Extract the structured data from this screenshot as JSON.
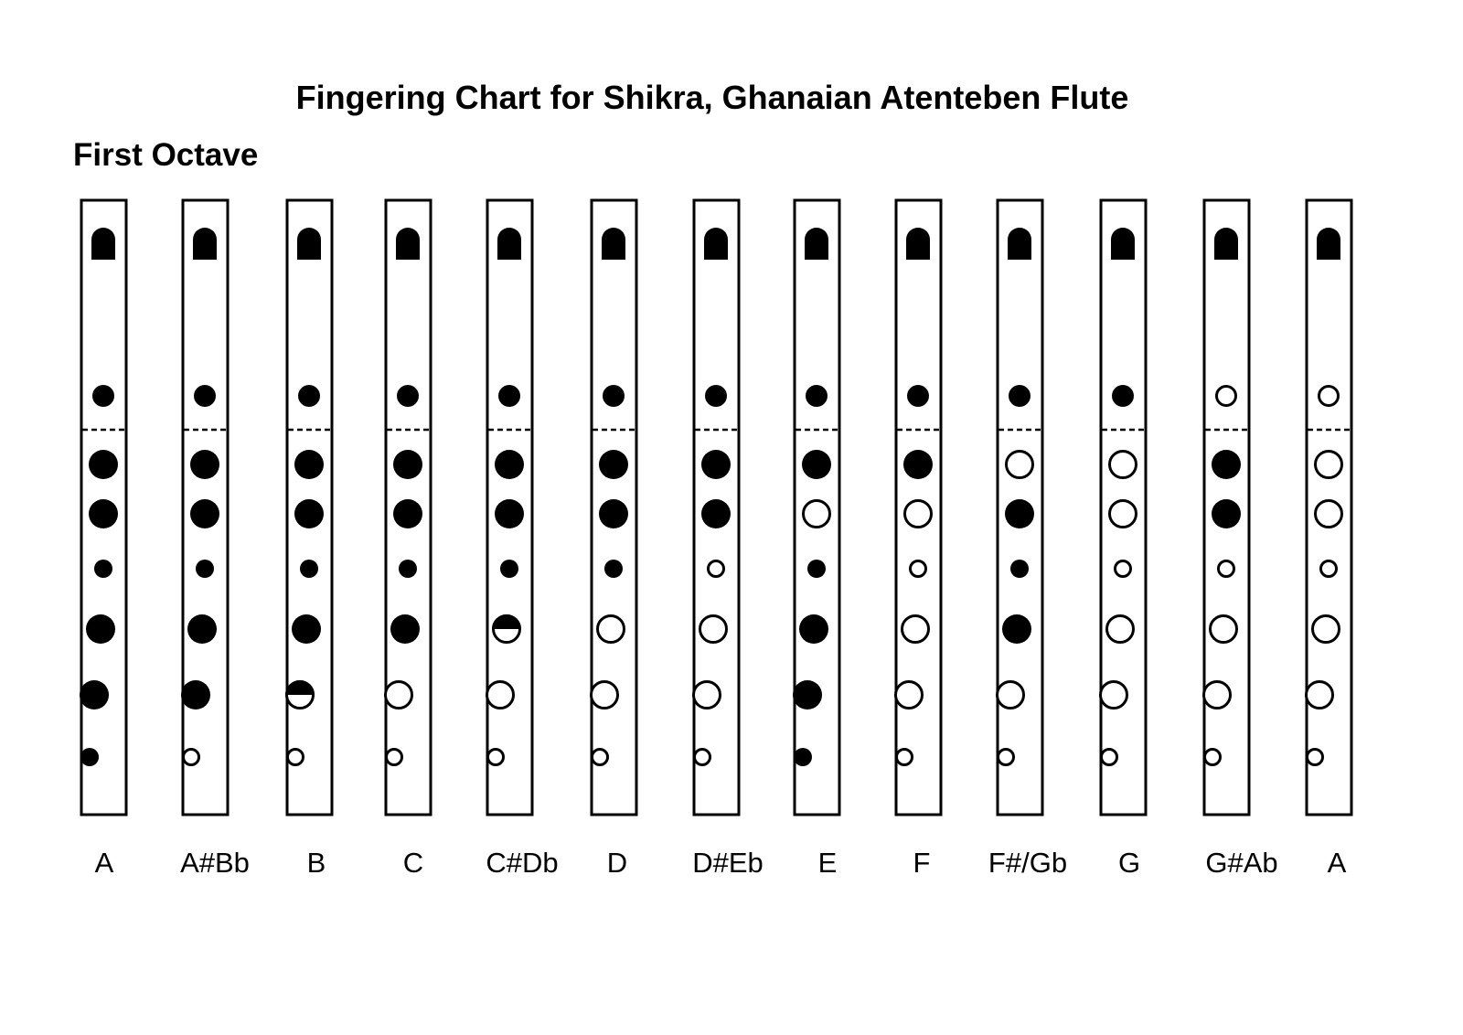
{
  "title": "Fingering Chart for Shikra, Ghanaian Atenteben Flute",
  "section": "First Octave",
  "legend_states": {
    "1": "closed",
    "0": "open",
    "h": "half-closed"
  },
  "notes": [
    {
      "label": "A",
      "holes": [
        "1",
        "1",
        "1",
        "1",
        "1",
        "1",
        "1"
      ]
    },
    {
      "label": "A#Bb",
      "holes": [
        "1",
        "1",
        "1",
        "1",
        "1",
        "1",
        "0"
      ]
    },
    {
      "label": "B",
      "holes": [
        "1",
        "1",
        "1",
        "1",
        "1",
        "h",
        "0"
      ]
    },
    {
      "label": "C",
      "holes": [
        "1",
        "1",
        "1",
        "1",
        "1",
        "0",
        "0"
      ]
    },
    {
      "label": "C#Db",
      "holes": [
        "1",
        "1",
        "1",
        "1",
        "h",
        "0",
        "0"
      ]
    },
    {
      "label": "D",
      "holes": [
        "1",
        "1",
        "1",
        "1",
        "0",
        "0",
        "0"
      ]
    },
    {
      "label": "D#Eb",
      "holes": [
        "1",
        "1",
        "1",
        "0",
        "0",
        "0",
        "0"
      ]
    },
    {
      "label": "E",
      "holes": [
        "1",
        "1",
        "0",
        "1",
        "1",
        "1",
        "1"
      ]
    },
    {
      "label": "F",
      "holes": [
        "1",
        "1",
        "0",
        "0",
        "0",
        "0",
        "0"
      ]
    },
    {
      "label": "F#/Gb",
      "holes": [
        "1",
        "0",
        "1",
        "1",
        "1",
        "0",
        "0"
      ]
    },
    {
      "label": "G",
      "holes": [
        "1",
        "0",
        "0",
        "0",
        "0",
        "0",
        "0"
      ]
    },
    {
      "label": "G#Ab",
      "holes": [
        "0",
        "1",
        "1",
        "0",
        "0",
        "0",
        "0"
      ]
    },
    {
      "label": "A",
      "holes": [
        "0",
        "0",
        "0",
        "0",
        "0",
        "0",
        "0"
      ]
    }
  ]
}
